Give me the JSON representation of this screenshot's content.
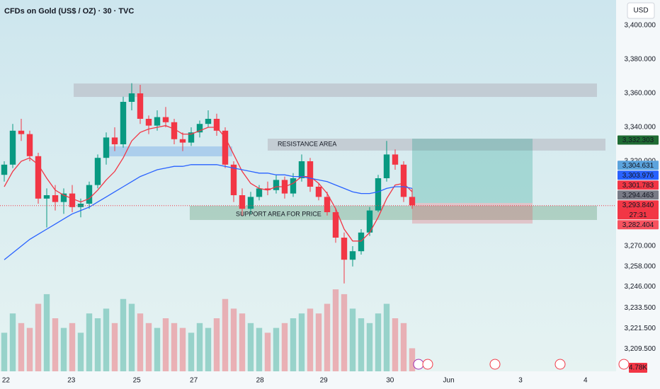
{
  "chart_data": {
    "type": "candlestick",
    "title": "CFDs on Gold (US$ / OZ) · 30 · TVC",
    "currency": "USD",
    "xlim": [
      0,
      72.5
    ],
    "xticks": [
      {
        "value": 0.7,
        "label": "22"
      },
      {
        "value": 8.4,
        "label": "23"
      },
      {
        "value": 16.1,
        "label": "25"
      },
      {
        "value": 22.8,
        "label": "27"
      },
      {
        "value": 30.6,
        "label": "28"
      },
      {
        "value": 38.1,
        "label": "29"
      },
      {
        "value": 45.9,
        "label": "30"
      },
      {
        "value": 52.8,
        "label": "Jun"
      },
      {
        "value": 61.25,
        "label": "3"
      },
      {
        "value": 68.9,
        "label": "4"
      }
    ],
    "ylim": [
      3196.25,
      3415
    ],
    "yticks": [
      {
        "value": 3400,
        "label": "3,400.000"
      },
      {
        "value": 3380,
        "label": "3,380.000"
      },
      {
        "value": 3360,
        "label": "3,360.000"
      },
      {
        "value": 3340,
        "label": "3,340.000"
      },
      {
        "value": 3320,
        "label": "3,320.000"
      },
      {
        "value": 3270,
        "label": "3,270.000"
      },
      {
        "value": 3258,
        "label": "3,258.000"
      },
      {
        "value": 3246,
        "label": "3,246.000"
      },
      {
        "value": 3233.5,
        "label": "3,233.500"
      },
      {
        "value": 3221.5,
        "label": "3,221.500"
      },
      {
        "value": 3209.5,
        "label": "3,209.500"
      }
    ],
    "grid": false,
    "up_color": "#089981",
    "down_color": "#f23645",
    "x": [
      0.5,
      1.5,
      2.5,
      3.5,
      4.5,
      5.5,
      6.5,
      7.5,
      8.5,
      9.5,
      10.5,
      11.5,
      12.5,
      13.5,
      14.5,
      15.5,
      16.5,
      17.5,
      18.5,
      19.5,
      20.5,
      21.5,
      22.5,
      23.5,
      24.5,
      25.5,
      26.5,
      27.5,
      28.5,
      29.5,
      30.5,
      31.5,
      32.5,
      33.5,
      34.5,
      35.5,
      36.5,
      37.5,
      38.5,
      39.5,
      40.5,
      41.5,
      42.5,
      43.5,
      44.5,
      45.5,
      46.5,
      47.5,
      48.5
    ],
    "open": [
      3312,
      3318,
      3338,
      3336,
      3323,
      3298,
      3300,
      3296,
      3301,
      3293,
      3295,
      3306,
      3322,
      3334,
      3330,
      3355,
      3360,
      3345,
      3341,
      3346,
      3343,
      3333,
      3331,
      3337,
      3342,
      3345,
      3338,
      3318,
      3300,
      3292,
      3299,
      3304,
      3303,
      3309,
      3301,
      3310,
      3320,
      3305,
      3299,
      3290,
      3275,
      3262,
      3267,
      3278,
      3291,
      3310,
      3324,
      3318,
      3299
    ],
    "high": [
      3320,
      3342,
      3345,
      3338,
      3325,
      3304,
      3306,
      3304,
      3306,
      3298,
      3308,
      3324,
      3337,
      3340,
      3358,
      3366,
      3365,
      3347,
      3350,
      3352,
      3345,
      3337,
      3340,
      3344,
      3350,
      3348,
      3340,
      3320,
      3304,
      3302,
      3306,
      3308,
      3312,
      3311,
      3313,
      3324,
      3322,
      3307,
      3302,
      3292,
      3278,
      3270,
      3280,
      3293,
      3312,
      3332,
      3327,
      3320,
      3304
    ],
    "low": [
      3308,
      3316,
      3332,
      3320,
      3295,
      3281,
      3291,
      3289,
      3290,
      3287,
      3292,
      3304,
      3318,
      3326,
      3328,
      3350,
      3342,
      3336,
      3338,
      3340,
      3330,
      3326,
      3329,
      3334,
      3340,
      3335,
      3316,
      3296,
      3288,
      3289,
      3297,
      3300,
      3301,
      3298,
      3299,
      3308,
      3302,
      3297,
      3288,
      3272,
      3248,
      3258,
      3265,
      3276,
      3290,
      3308,
      3315,
      3296,
      3292
    ],
    "close": [
      3318,
      3338,
      3336,
      3323,
      3298,
      3300,
      3296,
      3301,
      3293,
      3295,
      3306,
      3322,
      3334,
      3330,
      3355,
      3360,
      3345,
      3341,
      3346,
      3343,
      3333,
      3331,
      3337,
      3342,
      3345,
      3338,
      3318,
      3300,
      3292,
      3299,
      3304,
      3303,
      3309,
      3301,
      3310,
      3320,
      3305,
      3299,
      3290,
      3275,
      3262,
      3267,
      3278,
      3291,
      3310,
      3324,
      3318,
      3299,
      3294
    ],
    "overlays": [
      {
        "color": "#f23645",
        "values": [
          3305,
          3314,
          3320,
          3322,
          3318,
          3310,
          3303,
          3300,
          3298,
          3296,
          3298,
          3303,
          3309,
          3314,
          3322,
          3332,
          3337,
          3339,
          3340,
          3341,
          3339,
          3336,
          3336,
          3338,
          3340,
          3340,
          3334,
          3324,
          3314,
          3307,
          3304,
          3303,
          3305,
          3305,
          3307,
          3311,
          3311,
          3307,
          3301,
          3292,
          3280,
          3273,
          3273,
          3278,
          3287,
          3298,
          3306,
          3307,
          3302
        ]
      },
      {
        "color": "#2962ff",
        "values": [
          3262,
          3266,
          3270,
          3274,
          3277,
          3280,
          3283,
          3286,
          3289,
          3291,
          3293,
          3296,
          3299,
          3302,
          3305,
          3308,
          3311,
          3313,
          3315,
          3316,
          3317,
          3317,
          3318,
          3318,
          3318,
          3318,
          3317,
          3316,
          3315,
          3314,
          3313,
          3313,
          3312,
          3312,
          3311,
          3311,
          3310,
          3309,
          3308,
          3306,
          3304,
          3302,
          3301,
          3301,
          3302,
          3304,
          3305,
          3305,
          3304
        ]
      }
    ],
    "volume": {
      "ylim": [
        0,
        22
      ],
      "values": [
        8,
        12,
        10,
        9,
        14,
        16,
        11,
        9,
        10,
        8,
        12,
        11,
        13,
        10,
        15,
        14,
        12,
        10,
        9,
        11,
        10,
        9,
        8,
        10,
        9,
        11,
        15,
        13,
        12,
        10,
        9,
        8,
        9,
        10,
        11,
        12,
        13,
        12,
        14,
        17,
        16,
        13,
        11,
        10,
        12,
        14,
        11,
        10,
        4.78
      ],
      "current": {
        "value": 4.78,
        "label": "4.78K"
      }
    },
    "zones": [
      {
        "top": 3365.8,
        "bottom": 3357.9,
        "x": [
          8.67,
          70.25
        ],
        "color": "rgba(180,180,190,0.55)"
      },
      {
        "top": 3333.3,
        "bottom": 3326.3,
        "x": [
          31.5,
          71.25
        ],
        "color": "rgba(180,180,190,0.55)"
      },
      {
        "top": 3293.75,
        "bottom": 3285.4,
        "x": [
          22.33,
          70.25
        ],
        "color": "rgba(120,170,140,0.45)"
      },
      {
        "top": 3328.75,
        "bottom": 3322.9,
        "x": [
          12.33,
          27.33
        ],
        "color": "rgba(120,170,230,0.45)"
      }
    ],
    "annotations": [
      {
        "text": "RESISTANCE AREA"
      },
      {
        "text": "SUPPORT AREA FOR PRICE"
      }
    ],
    "position": {
      "x": [
        48.5,
        62.67
      ],
      "target": 3333.3,
      "entry": 3295.4,
      "stop": 3283.3
    },
    "price_labels": [
      {
        "value": 3332.303,
        "label": "3,332.303",
        "color": "#1e6b33"
      },
      {
        "value": 3304.631,
        "label": "3,304.631",
        "color": "#5ba3dd"
      },
      {
        "value": 3303.976,
        "label": "3,303.976",
        "color": "#2962ff"
      },
      {
        "value": 3301.783,
        "label": "3,301.783",
        "color": "#f23645"
      },
      {
        "value": 3294.463,
        "label": "3,294.463",
        "color": "#787b86"
      },
      {
        "value": 3293.84,
        "label": "3,293.840",
        "color": "#f23645",
        "countdown": "27:31"
      },
      {
        "value": 3282.404,
        "label": "3,282.404",
        "color": "#f7525f"
      }
    ]
  }
}
